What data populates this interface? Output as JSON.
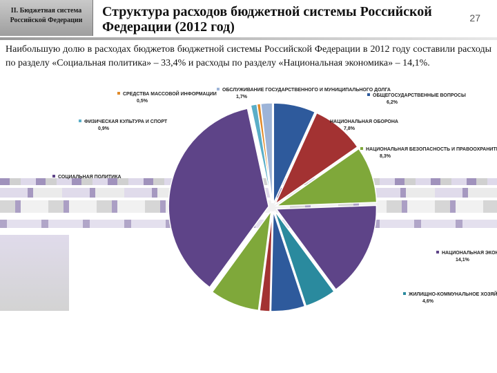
{
  "header": {
    "section_line1": "II. Бюджетная система",
    "section_line2": "Российской Федерации",
    "title": "Структура расходов бюджетной системы Российской Федерации (2012 год)",
    "slide_number": "27"
  },
  "intro": "Наибольшую долю в расходах бюджетов бюджетной системы Российской Федерации в 2012 году составили расходы по разделу «Социальная политика» – 33,4% и расходы по разделу «Национальная экономика» – 14,1%.",
  "chart_data": {
    "type": "pie",
    "title": "",
    "start_angle_deg": 0,
    "slices": [
      {
        "label": "ОБЩЕГОСУДАРСТВЕННЫЕ ВОПРОСЫ",
        "value_text": "6,2%",
        "value": 6.2,
        "color": "#2e5a9c"
      },
      {
        "label": "НАЦИОНАЛЬНАЯ ОБОРОНА",
        "value_text": "7,8%",
        "value": 7.8,
        "color": "#a33232"
      },
      {
        "label": "НАЦИОНАЛЬНАЯ БЕЗОПАСНОСТЬ И ПРАВООХРАНИТЕЛЬНАЯ ДЕЯТЕЛЬНОСТЬ",
        "value_text": "8,3%",
        "value": 8.3,
        "color": "#7fa83a"
      },
      {
        "label": "НАЦИОНАЛЬНАЯ ЭКОНОМИКА",
        "value_text": "14,1%",
        "value": 14.1,
        "color": "#5e4488"
      },
      {
        "label": "ЖИЛИЩНО-КОММУНАЛЬНОЕ ХОЗЯЙСТВО",
        "value_text": "4,6%",
        "value": 4.6,
        "color": "#2a8a9e"
      },
      {
        "label": "",
        "value_text": "",
        "value": 5.0,
        "color": "#2e5a9c"
      },
      {
        "label": "",
        "value_text": "",
        "value": 1.5,
        "color": "#a33232"
      },
      {
        "label": "",
        "value_text": "",
        "value": 7.3,
        "color": "#7fa83a"
      },
      {
        "label": "СОЦИАЛЬНАЯ ПОЛИТИКА",
        "value_text": "",
        "value": 33.4,
        "color": "#5e4488"
      },
      {
        "label": "ФИЗИЧЕСКАЯ КУЛЬТУРА И СПОРТ",
        "value_text": "0,9%",
        "value": 0.9,
        "color": "#5aaec8"
      },
      {
        "label": "СРЕДСТВА МАССОВОЙ ИНФОРМАЦИИ",
        "value_text": "0,5%",
        "value": 0.5,
        "color": "#e08a2a"
      },
      {
        "label": "ОБСЛУЖИВАНИЕ ГОСУДАРСТВЕННОГО И МУНИЦИПАЛЬНОГО ДОЛГА",
        "value_text": "1,7%",
        "value": 1.7,
        "color": "#9db4d8"
      }
    ]
  },
  "colors": {
    "glitch_purple": "#8f7fb0",
    "glitch_grey": "#c8c8c8",
    "glitch_light": "#d8d2e6"
  }
}
